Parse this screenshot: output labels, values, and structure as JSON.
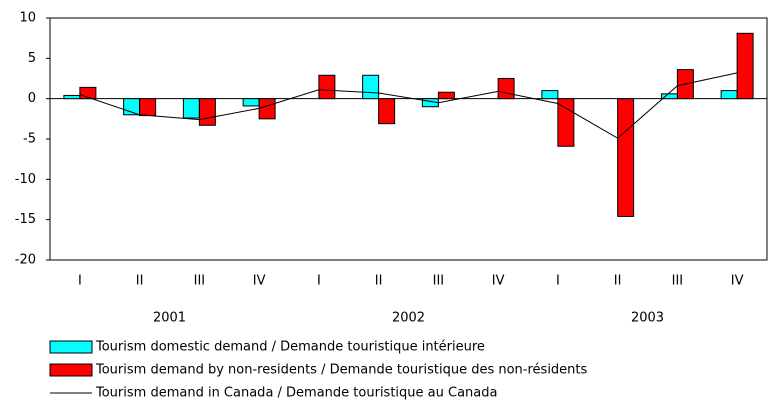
{
  "chart_data": {
    "type": "bar",
    "categories": [
      "I",
      "II",
      "III",
      "IV",
      "I",
      "II",
      "III",
      "IV",
      "I",
      "II",
      "III",
      "IV"
    ],
    "groups": [
      "2001",
      "2002",
      "2003"
    ],
    "ylim": [
      -20,
      10
    ],
    "yticks": [
      -20,
      -15,
      -10,
      -5,
      0,
      5,
      10
    ],
    "series": [
      {
        "name": "Tourism domestic demand / Demande touristique intérieure",
        "color": "#00ffff",
        "type": "bar",
        "values": [
          0.4,
          -2.0,
          -2.4,
          -0.9,
          0,
          2.9,
          -1.0,
          0,
          1.0,
          0,
          0.6,
          1.0
        ]
      },
      {
        "name": "Tourism demand by non-residents / Demande touristique des non-résidents",
        "color": "#ff0000",
        "type": "bar",
        "values": [
          1.4,
          -2.1,
          -3.3,
          -2.5,
          2.9,
          -3.1,
          0.8,
          2.5,
          -5.9,
          -14.6,
          3.6,
          8.1
        ]
      },
      {
        "name": "Tourism demand in Canada / Demande touristique au Canada",
        "color": "#000000",
        "type": "line",
        "values": [
          0.5,
          -2.0,
          -2.6,
          -1.2,
          1.1,
          0.7,
          -0.5,
          0.9,
          -0.6,
          -4.9,
          1.6,
          3.2
        ]
      }
    ]
  }
}
